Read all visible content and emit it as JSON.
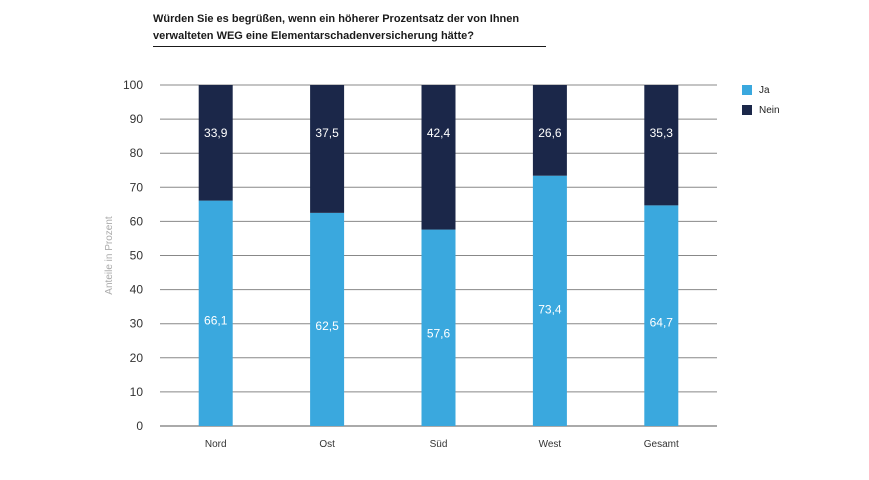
{
  "chart_data": {
    "type": "bar",
    "stacked": true,
    "title": "Würden Sie es begrüßen, wenn ein höherer Prozentsatz der von Ihnen verwalteten WEG eine Elementarschadenversicherung hätte?",
    "title_lines": [
      "Würden Sie es begrüßen, wenn ein höherer Prozentsatz der von Ihnen",
      "verwalteten WEG eine Elementarschadenversicherung hätte?"
    ],
    "ylabel": "Anteile in Prozent",
    "xlabel": "",
    "ylim": [
      0,
      100
    ],
    "yticks": [
      0,
      10,
      20,
      30,
      40,
      50,
      60,
      70,
      80,
      90,
      100
    ],
    "categories": [
      "Nord",
      "Ost",
      "Süd",
      "West",
      "Gesamt"
    ],
    "series": [
      {
        "name": "Ja",
        "color": "#3aa8de",
        "values": [
          66.1,
          62.5,
          57.6,
          73.4,
          64.7
        ],
        "labels": [
          "66,1",
          "62,5",
          "57,6",
          "73,4",
          "64,7"
        ]
      },
      {
        "name": "Nein",
        "color": "#1b2749",
        "values": [
          33.9,
          37.5,
          42.4,
          26.6,
          35.3
        ],
        "labels": [
          "33,9",
          "37,5",
          "42,4",
          "26,6",
          "35,3"
        ]
      }
    ],
    "grid": true,
    "legend_position": "top-right"
  }
}
